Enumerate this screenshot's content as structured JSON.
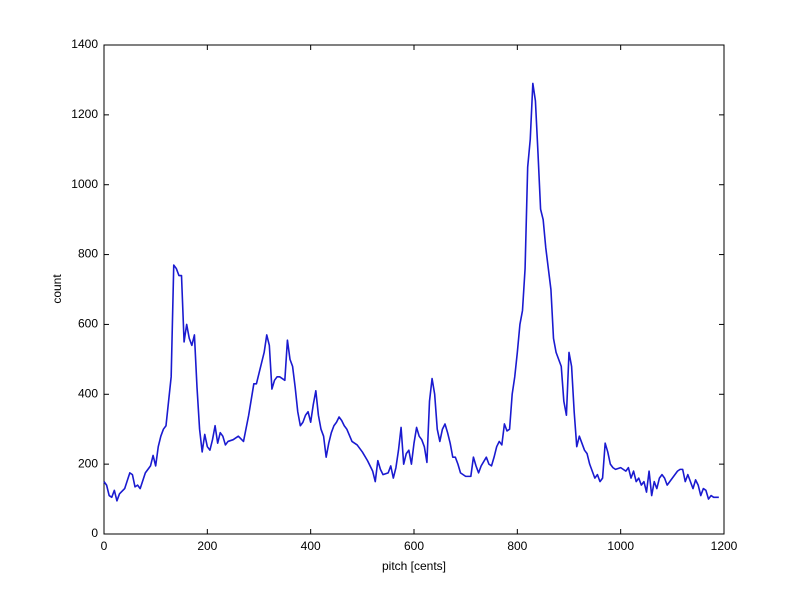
{
  "chart_data": {
    "type": "line",
    "xlabel": "pitch [cents]",
    "ylabel": "count",
    "xlim": [
      0,
      1200
    ],
    "ylim": [
      0,
      1400
    ],
    "xticks": [
      0,
      200,
      400,
      600,
      800,
      1000,
      1200
    ],
    "yticks": [
      0,
      200,
      400,
      600,
      800,
      1000,
      1200,
      1400
    ],
    "grid": false,
    "series": [
      {
        "color": "#1a1ad0",
        "x": [
          0,
          5,
          10,
          15,
          20,
          25,
          30,
          40,
          50,
          55,
          60,
          65,
          70,
          80,
          90,
          95,
          100,
          105,
          110,
          115,
          120,
          125,
          130,
          135,
          140,
          145,
          150,
          155,
          160,
          165,
          170,
          175,
          180,
          185,
          190,
          195,
          200,
          205,
          210,
          215,
          220,
          225,
          230,
          235,
          240,
          250,
          260,
          270,
          280,
          290,
          295,
          300,
          305,
          310,
          315,
          320,
          325,
          330,
          335,
          340,
          345,
          350,
          355,
          360,
          365,
          370,
          375,
          380,
          385,
          390,
          395,
          400,
          405,
          410,
          415,
          420,
          425,
          430,
          435,
          440,
          445,
          450,
          455,
          460,
          465,
          470,
          480,
          490,
          500,
          510,
          520,
          525,
          530,
          535,
          540,
          550,
          555,
          560,
          565,
          570,
          575,
          580,
          585,
          590,
          595,
          600,
          605,
          610,
          615,
          620,
          625,
          630,
          635,
          640,
          645,
          650,
          655,
          660,
          665,
          670,
          675,
          680,
          685,
          690,
          700,
          710,
          715,
          720,
          725,
          730,
          740,
          745,
          750,
          755,
          760,
          765,
          770,
          775,
          780,
          785,
          790,
          795,
          800,
          805,
          810,
          815,
          820,
          825,
          830,
          835,
          840,
          845,
          850,
          855,
          860,
          865,
          870,
          875,
          880,
          885,
          890,
          895,
          900,
          905,
          910,
          915,
          920,
          925,
          930,
          935,
          940,
          945,
          950,
          955,
          960,
          965,
          970,
          975,
          980,
          985,
          990,
          1000,
          1010,
          1015,
          1020,
          1025,
          1030,
          1035,
          1040,
          1045,
          1050,
          1055,
          1060,
          1065,
          1070,
          1075,
          1080,
          1085,
          1090,
          1100,
          1110,
          1115,
          1120,
          1125,
          1130,
          1135,
          1140,
          1145,
          1150,
          1155,
          1160,
          1165,
          1170,
          1175,
          1180,
          1190
        ],
        "values": [
          150,
          140,
          110,
          105,
          125,
          95,
          115,
          130,
          175,
          170,
          135,
          140,
          130,
          175,
          195,
          225,
          195,
          250,
          280,
          300,
          310,
          380,
          450,
          770,
          760,
          740,
          740,
          550,
          600,
          560,
          540,
          570,
          420,
          300,
          235,
          285,
          250,
          240,
          270,
          310,
          260,
          290,
          280,
          255,
          265,
          270,
          280,
          265,
          340,
          430,
          430,
          460,
          490,
          520,
          570,
          540,
          415,
          440,
          450,
          450,
          445,
          440,
          555,
          500,
          480,
          420,
          350,
          310,
          320,
          340,
          350,
          320,
          370,
          410,
          340,
          300,
          280,
          220,
          260,
          290,
          310,
          320,
          335,
          325,
          310,
          300,
          265,
          255,
          235,
          210,
          180,
          150,
          210,
          185,
          170,
          175,
          195,
          160,
          190,
          240,
          305,
          200,
          230,
          240,
          200,
          260,
          305,
          280,
          270,
          250,
          205,
          380,
          445,
          400,
          300,
          265,
          300,
          315,
          290,
          260,
          220,
          220,
          200,
          175,
          165,
          165,
          220,
          195,
          175,
          195,
          220,
          200,
          195,
          220,
          250,
          265,
          255,
          315,
          295,
          300,
          400,
          450,
          520,
          600,
          640,
          760,
          1050,
          1130,
          1290,
          1240,
          1090,
          930,
          900,
          820,
          760,
          700,
          560,
          520,
          500,
          480,
          380,
          340,
          520,
          480,
          350,
          250,
          280,
          260,
          240,
          230,
          200,
          180,
          160,
          170,
          150,
          160,
          260,
          235,
          200,
          190,
          185,
          190,
          180,
          190,
          160,
          180,
          150,
          160,
          140,
          150,
          120,
          180,
          110,
          150,
          130,
          160,
          170,
          160,
          140,
          160,
          180,
          185,
          185,
          150,
          170,
          150,
          130,
          155,
          140,
          110,
          130,
          125,
          100,
          110,
          105,
          105
        ]
      }
    ]
  }
}
